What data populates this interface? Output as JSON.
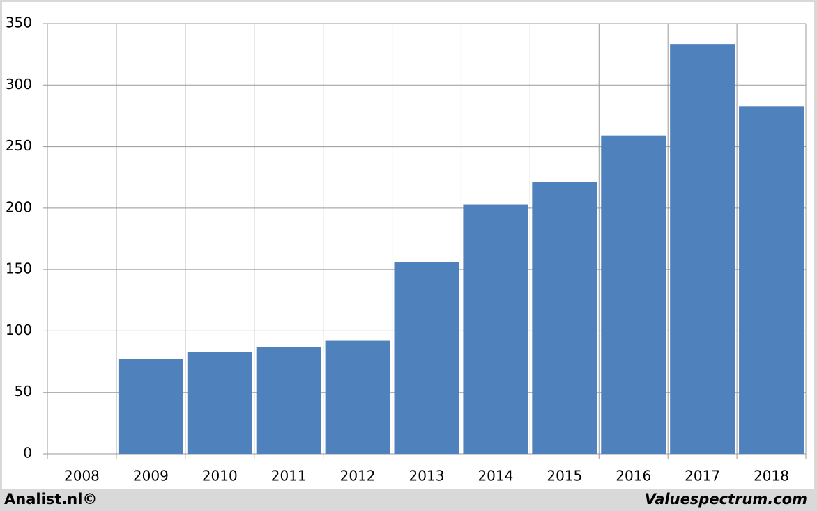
{
  "chart_data": {
    "type": "bar",
    "categories": [
      "2008",
      "2009",
      "2010",
      "2011",
      "2012",
      "2013",
      "2014",
      "2015",
      "2016",
      "2017",
      "2018"
    ],
    "values": [
      null,
      77.5,
      83,
      87,
      92,
      156,
      203,
      221,
      259,
      333.5,
      283
    ],
    "color": "#4f81bd",
    "ylim": [
      0,
      350
    ],
    "yticks": [
      0,
      50,
      100,
      150,
      200,
      250,
      300,
      350
    ],
    "grid": true,
    "credit_left": "Analist.nl©",
    "credit_right": "Valuespectrum.com"
  }
}
